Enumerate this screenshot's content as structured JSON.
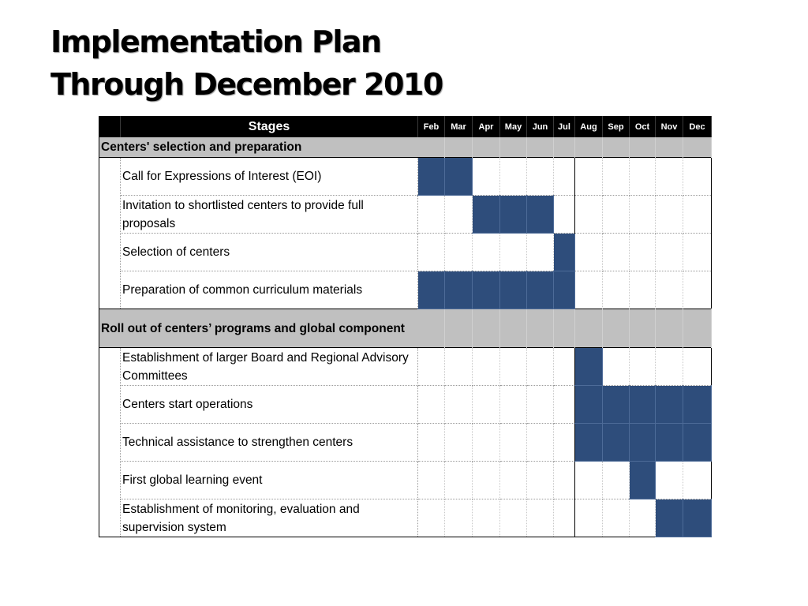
{
  "title": {
    "line1": "Implementation Plan",
    "line2": "Through December 2010"
  },
  "table": {
    "stages_header": "Stages",
    "months": [
      "Feb",
      "Mar",
      "Apr",
      "May",
      "Jun",
      "Jul",
      "Aug",
      "Sep",
      "Oct",
      "Nov",
      "Dec"
    ],
    "sections": [
      {
        "label": "Centers' selection and preparation",
        "tasks": [
          {
            "label": "Call for Expressions of Interest (EOI)",
            "active_months": [
              "Feb",
              "Mar"
            ]
          },
          {
            "label": "Invitation to shortlisted centers to provide full proposals",
            "active_months": [
              "Apr",
              "May",
              "Jun"
            ]
          },
          {
            "label": "Selection of centers",
            "active_months": [
              "Jul"
            ]
          },
          {
            "label": "Preparation of common curriculum materials",
            "active_months": [
              "Feb",
              "Mar",
              "Apr",
              "May",
              "Jun",
              "Jul"
            ]
          }
        ]
      },
      {
        "label": "Roll out of centers’ programs and global component",
        "tasks": [
          {
            "label": "Establishment of larger Board and Regional Advisory Committees",
            "active_months": [
              "Aug"
            ]
          },
          {
            "label": "Centers start operations",
            "active_months": [
              "Aug",
              "Sep",
              "Oct",
              "Nov",
              "Dec"
            ]
          },
          {
            "label": "Technical assistance to strengthen centers",
            "active_months": [
              "Aug",
              "Sep",
              "Oct",
              "Nov",
              "Dec"
            ]
          },
          {
            "label": "First global learning event",
            "active_months": [
              "Oct"
            ]
          },
          {
            "label": "Establishment of monitoring, evaluation and supervision system",
            "active_months": [
              "Nov",
              "Dec"
            ]
          }
        ]
      }
    ],
    "bar_color": "#2e4d7b"
  }
}
